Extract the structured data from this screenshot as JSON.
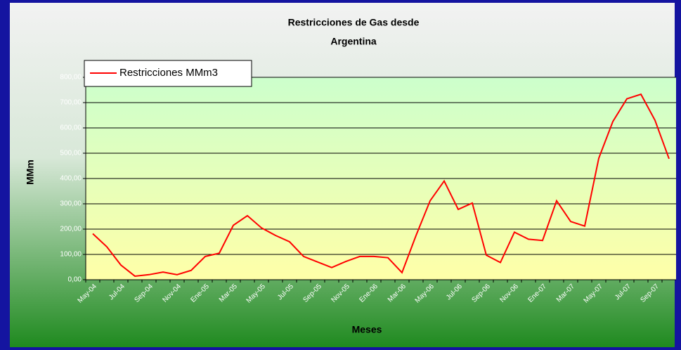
{
  "chart_data": {
    "type": "line",
    "title": [
      "Restricciones de Gas desde",
      "Argentina"
    ],
    "x_label": "Meses",
    "y_label": "MMm",
    "categories": [
      "May-04",
      null,
      "Jul-04",
      null,
      "Sep-04",
      null,
      "Nov-04",
      null,
      "Ene-05",
      null,
      "Mar-05",
      null,
      "May-05",
      null,
      "Jul-05",
      null,
      "Sep-05",
      null,
      "Nov-05",
      null,
      "Ene-06",
      null,
      "Mar-06",
      null,
      "May-06",
      null,
      "Jul-06",
      null,
      "Sep-06",
      null,
      "Nov-06",
      null,
      "Ene-07",
      null,
      "Mar-07",
      null,
      "May-07",
      null,
      "Jul-07",
      null,
      "Sep-07",
      null
    ],
    "series": [
      {
        "name": "Restricciones MMm3",
        "color": "#ff0000",
        "values": [
          182,
          130,
          58,
          14,
          20,
          30,
          20,
          37,
          92,
          105,
          215,
          253,
          205,
          175,
          150,
          92,
          70,
          48,
          72,
          92,
          92,
          87,
          28,
          175,
          312,
          390,
          278,
          303,
          97,
          68,
          188,
          160,
          155,
          312,
          230,
          212,
          480,
          625,
          715,
          733,
          630,
          478
        ]
      }
    ],
    "ylim": [
      0,
      800
    ],
    "yticks": [
      {
        "value": 0,
        "label": "0,00"
      },
      {
        "value": 100,
        "label": "100,00"
      },
      {
        "value": 200,
        "label": "200,00"
      },
      {
        "value": 300,
        "label": "300,00"
      },
      {
        "value": 400,
        "label": "400,00"
      },
      {
        "value": 500,
        "label": "500,00"
      },
      {
        "value": 600,
        "label": "600,00"
      },
      {
        "value": 700,
        "label": "700,00"
      },
      {
        "value": 800,
        "label": "800,00"
      }
    ],
    "grid": true,
    "legend": "top-left"
  }
}
